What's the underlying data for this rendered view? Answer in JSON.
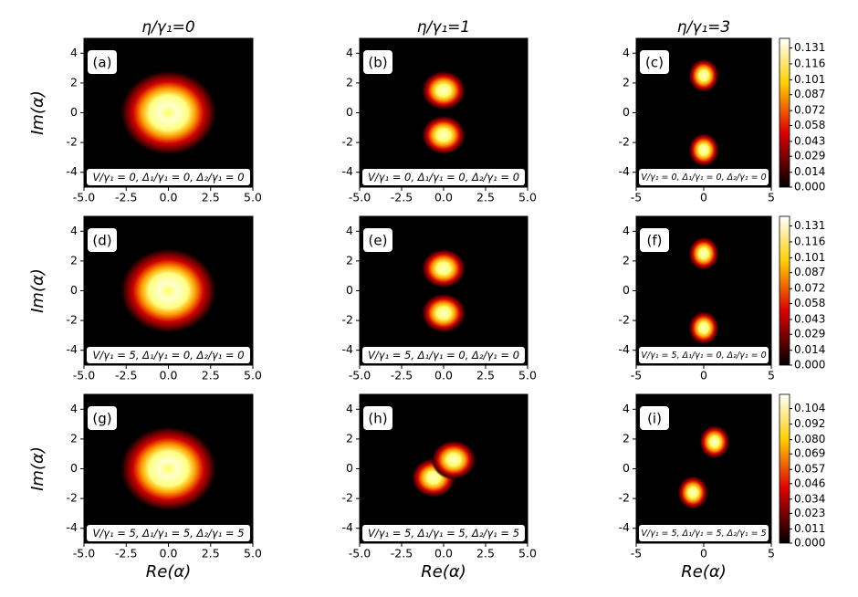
{
  "chart_data": [
    {
      "type": "heatmap",
      "title": "η/γ₁=0",
      "ylabel": "Im(α)",
      "panel_label": "(a)",
      "annotation": "V/γ₁ = 0, Δ₁/γ₁ = 0, Δ₂/γ₁ = 0",
      "xlim": [
        -5,
        5
      ],
      "ylim": [
        -5,
        5
      ],
      "xticks": [
        {
          "value": -5,
          "label": "-5.0"
        },
        -2.5,
        {
          "value": 0,
          "label": "0.0"
        },
        2.5,
        {
          "value": 5,
          "label": "5.0"
        }
      ],
      "yticks": [
        -4,
        -2,
        0,
        2,
        4
      ],
      "peaks": [
        {
          "x": 0,
          "y": 0
        }
      ]
    },
    {
      "type": "heatmap",
      "title": "η/γ₁=1",
      "panel_label": "(b)",
      "annotation": "V/γ₁ = 0, Δ₁/γ₁ = 0, Δ₂/γ₁ = 0",
      "xlim": [
        -5,
        5
      ],
      "ylim": [
        -5,
        5
      ],
      "xticks": [
        {
          "value": -5,
          "label": "-5.0"
        },
        -2.5,
        {
          "value": 0,
          "label": "0.0"
        },
        2.5,
        {
          "value": 5,
          "label": "5.0"
        }
      ],
      "yticks": [
        -4,
        -2,
        0,
        2,
        4
      ],
      "peaks": [
        {
          "x": 0,
          "y": 1.5
        },
        {
          "x": 0,
          "y": -1.5
        }
      ]
    },
    {
      "type": "heatmap",
      "title": "η/γ₁=3",
      "panel_label": "(c)",
      "annotation": "V/γ₁ = 0, Δ₁/γ₁ = 0, Δ₂/γ₁ = 0",
      "xlim": [
        -5,
        5
      ],
      "ylim": [
        -5,
        5
      ],
      "xticks": [
        -5,
        0,
        5
      ],
      "yticks": [
        -4,
        -2,
        0,
        2,
        4
      ],
      "peaks": [
        {
          "x": 0,
          "y": 2.5
        },
        {
          "x": 0,
          "y": -2.5
        }
      ],
      "clim": [
        0,
        0.14
      ],
      "cticks": [
        {
          "value": 0,
          "label": "0.000"
        },
        0.014,
        0.029,
        0.043,
        0.058,
        0.072,
        0.087,
        0.101,
        0.116,
        0.131
      ]
    },
    {
      "type": "heatmap",
      "ylabel": "Im(α)",
      "panel_label": "(d)",
      "annotation": "V/γ₁ = 5, Δ₁/γ₁ = 0, Δ₂/γ₁ = 0",
      "xlim": [
        -5,
        5
      ],
      "ylim": [
        -5,
        5
      ],
      "xticks": [
        {
          "value": -5,
          "label": "-5.0"
        },
        -2.5,
        {
          "value": 0,
          "label": "0.0"
        },
        2.5,
        {
          "value": 5,
          "label": "5.0"
        }
      ],
      "yticks": [
        -4,
        -2,
        0,
        2,
        4
      ],
      "peaks": [
        {
          "x": 0,
          "y": 0
        }
      ]
    },
    {
      "type": "heatmap",
      "panel_label": "(e)",
      "annotation": "V/γ₁ = 5, Δ₁/γ₁ = 0, Δ₂/γ₁ = 0",
      "xlim": [
        -5,
        5
      ],
      "ylim": [
        -5,
        5
      ],
      "xticks": [
        {
          "value": -5,
          "label": "-5.0"
        },
        -2.5,
        {
          "value": 0,
          "label": "0.0"
        },
        2.5,
        {
          "value": 5,
          "label": "5.0"
        }
      ],
      "yticks": [
        -4,
        -2,
        0,
        2,
        4
      ],
      "peaks": [
        {
          "x": 0,
          "y": 1.5
        },
        {
          "x": 0,
          "y": -1.5
        }
      ]
    },
    {
      "type": "heatmap",
      "panel_label": "(f)",
      "annotation": "V/γ₁ = 5, Δ₁/γ₁ = 0, Δ₂/γ₁ = 0",
      "xlim": [
        -5,
        5
      ],
      "ylim": [
        -5,
        5
      ],
      "xticks": [
        -5,
        0,
        5
      ],
      "yticks": [
        -4,
        -2,
        0,
        2,
        4
      ],
      "peaks": [
        {
          "x": 0,
          "y": 2.5
        },
        {
          "x": 0,
          "y": -2.5
        }
      ],
      "clim": [
        0,
        0.14
      ],
      "cticks": [
        {
          "value": 0,
          "label": "0.000"
        },
        0.014,
        0.029,
        0.043,
        0.058,
        0.072,
        0.087,
        0.101,
        0.116,
        0.131
      ]
    },
    {
      "type": "heatmap",
      "ylabel": "Im(α)",
      "xlabel": "Re(α)",
      "panel_label": "(g)",
      "annotation": "V/γ₁ = 5, Δ₁/γ₁ = 5, Δ₂/γ₁ = 5",
      "xlim": [
        -5,
        5
      ],
      "ylim": [
        -5,
        5
      ],
      "xticks": [
        {
          "value": -5,
          "label": "-5.0"
        },
        -2.5,
        {
          "value": 0,
          "label": "0.0"
        },
        2.5,
        {
          "value": 5,
          "label": "5.0"
        }
      ],
      "yticks": [
        -4,
        -2,
        0,
        2,
        4
      ],
      "peaks": [
        {
          "x": 0,
          "y": 0
        }
      ]
    },
    {
      "type": "heatmap",
      "xlabel": "Re(α)",
      "panel_label": "(h)",
      "annotation": "V/γ₁ = 5, Δ₁/γ₁ = 5, Δ₂/γ₁ = 5",
      "xlim": [
        -5,
        5
      ],
      "ylim": [
        -5,
        5
      ],
      "xticks": [
        {
          "value": -5,
          "label": "-5.0"
        },
        -2.5,
        {
          "value": 0,
          "label": "0.0"
        },
        2.5,
        {
          "value": 5,
          "label": "5.0"
        }
      ],
      "yticks": [
        -4,
        -2,
        0,
        2,
        4
      ],
      "peaks": [
        {
          "x": -0.6,
          "y": -0.6
        },
        {
          "x": 0.6,
          "y": 0.6
        }
      ]
    },
    {
      "type": "heatmap",
      "xlabel": "Re(α)",
      "panel_label": "(i)",
      "annotation": "V/γ₁ = 5, Δ₁/γ₁ = 5, Δ₂/γ₁ = 5",
      "xlim": [
        -5,
        5
      ],
      "ylim": [
        -5,
        5
      ],
      "xticks": [
        -5,
        0,
        5
      ],
      "yticks": [
        -4,
        -2,
        0,
        2,
        4
      ],
      "peaks": [
        {
          "x": 0.8,
          "y": 1.8
        },
        {
          "x": -0.8,
          "y": -1.6
        }
      ],
      "clim": [
        0,
        0.115
      ],
      "cticks": [
        {
          "value": 0,
          "label": "0.000"
        },
        0.011,
        0.023,
        0.034,
        0.046,
        0.057,
        0.069,
        {
          "value": 0.08,
          "label": "0.080"
        },
        0.092,
        0.104
      ]
    }
  ]
}
